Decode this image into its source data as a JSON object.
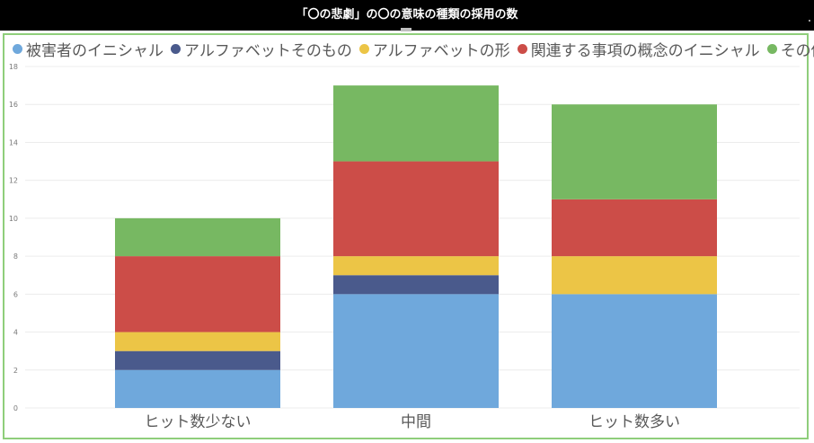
{
  "title": "「〇の悲劇」の〇の意味の種類の採用の数",
  "chart_data": {
    "type": "bar",
    "stacked": true,
    "title": "「〇の悲劇」の〇の意味の種類の採用の数",
    "categories": [
      "ヒット数少ない",
      "中間",
      "ヒット数多い"
    ],
    "series": [
      {
        "name": "被害者のイニシャル",
        "color": "#6fa8dc",
        "values": [
          2,
          6,
          6
        ]
      },
      {
        "name": "アルファベットそのもの",
        "color": "#4a5a8c",
        "values": [
          1,
          1,
          0
        ]
      },
      {
        "name": "アルファベットの形",
        "color": "#ecc546",
        "values": [
          1,
          1,
          2
        ]
      },
      {
        "name": "関連する事項の概念のイニシャル",
        "color": "#cc4d48",
        "values": [
          4,
          5,
          3
        ]
      },
      {
        "name": "その他",
        "color": "#77b862",
        "values": [
          2,
          4,
          5
        ]
      }
    ],
    "ylim": [
      0,
      18
    ],
    "yticks": [
      0,
      2,
      4,
      6,
      8,
      10,
      12,
      14,
      16,
      18
    ],
    "grid": true,
    "legend": "top-left",
    "xlabel": "",
    "ylabel": ""
  }
}
